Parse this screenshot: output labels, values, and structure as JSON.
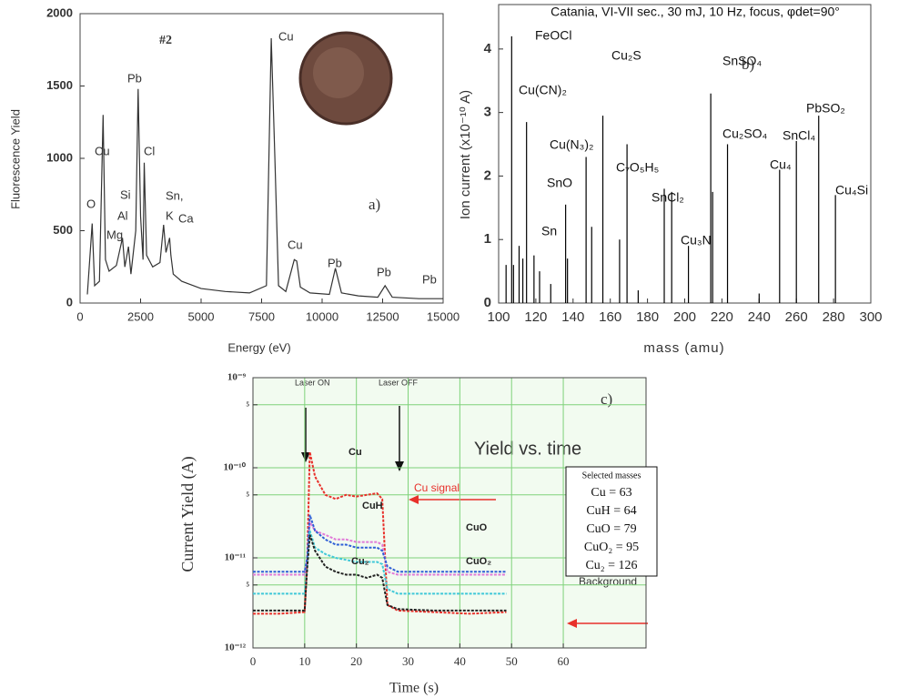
{
  "chart_data": [
    {
      "type": "line",
      "xlabel": "Energy (eV)",
      "ylabel": "Fluorescence Yield",
      "xlim": [
        0,
        15000
      ],
      "ylim": [
        0,
        2000
      ],
      "xticks": [
        0,
        2500,
        5000,
        7500,
        10000,
        12500,
        15000
      ],
      "yticks": [
        0,
        500,
        1000,
        1500,
        2000
      ],
      "color": "#333333",
      "x": [
        300,
        500,
        600,
        800,
        950,
        1050,
        1200,
        1500,
        1750,
        1850,
        2000,
        2100,
        2300,
        2400,
        2500,
        2600,
        2650,
        2750,
        3000,
        3300,
        3450,
        3550,
        3700,
        3750,
        3850,
        4200,
        5000,
        6000,
        7000,
        7700,
        7900,
        8050,
        8200,
        8500,
        8850,
        8950,
        9100,
        9500,
        10300,
        10550,
        10800,
        11500,
        12300,
        12600,
        12900,
        14000,
        15000
      ],
      "values": [
        60,
        550,
        120,
        150,
        1300,
        300,
        220,
        260,
        450,
        250,
        390,
        200,
        500,
        1480,
        600,
        300,
        970,
        330,
        250,
        280,
        540,
        350,
        450,
        330,
        200,
        150,
        100,
        80,
        70,
        120,
        1830,
        1000,
        120,
        80,
        300,
        290,
        110,
        70,
        60,
        240,
        70,
        50,
        40,
        120,
        40,
        30,
        30
      ],
      "annotations": [
        "#2",
        "a)",
        "O",
        "Cu",
        "Si",
        "Al",
        "Mg",
        "Pb",
        "Cl",
        "Sn,",
        "K",
        "Ca",
        "Cu",
        "Cu",
        "Pb",
        "Pb",
        "Pb"
      ]
    },
    {
      "type": "stem",
      "title": "Catania, VI-VII sec., 30 mJ, 10 Hz, focus, φdet=90°",
      "xlabel": "mass (amu)",
      "ylabel": "Ion current (x10⁻¹⁰ A)",
      "xlim": [
        100,
        300
      ],
      "ylim": [
        0,
        4.7
      ],
      "xticks": [
        100,
        120,
        140,
        160,
        180,
        200,
        220,
        240,
        260,
        280,
        300
      ],
      "yticks": [
        0,
        1,
        2,
        3,
        4
      ],
      "color": "#000000",
      "x": [
        104,
        107,
        108,
        111,
        113,
        115,
        119,
        122,
        128,
        136,
        137,
        147,
        150,
        156,
        165,
        169,
        175,
        189,
        193,
        202,
        214,
        215,
        223,
        240,
        251,
        260,
        272,
        281
      ],
      "values": [
        0.6,
        4.2,
        0.6,
        0.9,
        0.7,
        2.85,
        0.75,
        0.5,
        0.3,
        1.55,
        0.7,
        2.3,
        1.2,
        2.95,
        1.0,
        2.5,
        0.2,
        1.8,
        1.75,
        0.9,
        3.3,
        1.75,
        2.5,
        0.15,
        2.1,
        2.55,
        2.95,
        1.7
      ],
      "annotations": [
        "b)",
        "FeOCl",
        "Cu(CN)₂",
        "Cu₂S",
        "Cu(N₃)₂",
        "C₇O₅H₅",
        "SnO",
        "Sn",
        "SnCl₂",
        "Cu₃N",
        "SnSO₄",
        "Cu₂SO₄",
        "PbSO₂",
        "SnCl₄",
        "Cu₄",
        "Cu₄Si"
      ]
    },
    {
      "type": "line",
      "title": "Yield vs. time",
      "xlabel": "Time (s)",
      "ylabel": "Current Yield (A)",
      "log_y": true,
      "grid": true,
      "xlim": [
        0,
        76
      ],
      "ylim": [
        1e-12,
        1e-09
      ],
      "xticks": [
        0,
        10,
        20,
        30,
        40,
        50,
        60
      ],
      "yticks": [
        {
          "value": 1e-12,
          "label": "10⁻¹²"
        },
        {
          "value": 5e-12,
          "label": "5"
        },
        {
          "value": 1e-11,
          "label": "10⁻¹¹"
        },
        {
          "value": 5e-11,
          "label": "5"
        },
        {
          "value": 1e-10,
          "label": "10⁻¹⁰"
        },
        {
          "value": 5e-10,
          "label": "5"
        },
        {
          "value": 1e-09,
          "label": "10⁻⁹"
        }
      ],
      "x": [
        0,
        5,
        10,
        10.5,
        11,
        12,
        14,
        16,
        18,
        20,
        22,
        24,
        25,
        26,
        28,
        35,
        42,
        49
      ],
      "series": [
        {
          "name": "Cu",
          "color": "#e8302a",
          "values": [
            2.4e-12,
            2.4e-12,
            2.5e-12,
            1e-11,
            1.5e-10,
            8e-11,
            5e-11,
            4.5e-11,
            5e-11,
            4.8e-11,
            5e-11,
            5.2e-11,
            4.5e-11,
            3e-12,
            2.6e-12,
            2.5e-12,
            2.4e-12,
            2.5e-12
          ]
        },
        {
          "name": "CuH",
          "color": "#e07ad8",
          "values": [
            6.5e-12,
            6.5e-12,
            6.5e-12,
            1e-11,
            2.5e-11,
            2e-11,
            1.8e-11,
            1.6e-11,
            1.6e-11,
            1.5e-11,
            1.5e-11,
            1.5e-11,
            1.4e-11,
            7e-12,
            6.5e-12,
            6.5e-12,
            6.5e-12,
            6.5e-12
          ]
        },
        {
          "name": "CuO",
          "color": "#2f5fd6",
          "values": [
            7e-12,
            7e-12,
            7e-12,
            1e-11,
            3e-11,
            2e-11,
            1.6e-11,
            1.4e-11,
            1.4e-11,
            1.3e-11,
            1.3e-11,
            1.3e-11,
            1.2e-11,
            8e-12,
            7e-12,
            7e-12,
            7e-12,
            7e-12
          ]
        },
        {
          "name": "CuO₂",
          "color": "#3fc8d8",
          "values": [
            4e-12,
            4e-12,
            4e-12,
            8e-12,
            2e-11,
            1.3e-11,
            1.1e-11,
            1e-11,
            9.5e-12,
            9e-12,
            9e-12,
            9e-12,
            8.5e-12,
            4.5e-12,
            4e-12,
            4e-12,
            4e-12,
            4e-12
          ]
        },
        {
          "name": "Cu₂",
          "color": "#222222",
          "values": [
            2.6e-12,
            2.6e-12,
            2.6e-12,
            8e-12,
            1.8e-11,
            1.2e-11,
            8e-12,
            7e-12,
            6.5e-12,
            6.5e-12,
            6e-12,
            6.5e-12,
            6e-12,
            3e-12,
            2.7e-12,
            2.6e-12,
            2.6e-12,
            2.6e-12
          ]
        }
      ],
      "annotations": [
        "c)",
        "Laser ON",
        "Laser OFF",
        "Cu signal",
        "Background"
      ],
      "legend_box": {
        "title": "Selected masses",
        "entries": [
          "Cu = 63",
          "CuH = 64",
          "CuO = 79",
          "CuO₂ = 95",
          "Cu₂ = 126"
        ]
      }
    }
  ]
}
